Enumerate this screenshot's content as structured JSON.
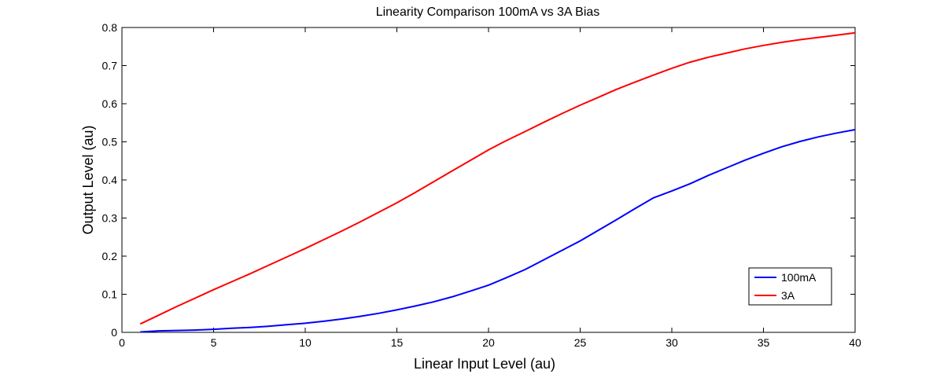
{
  "chart_data": {
    "type": "line",
    "title": "Linearity Comparison 100mA vs 3A Bias",
    "xlabel": "Linear Input Level (au)",
    "ylabel": "Output Level (au)",
    "xlim": [
      0,
      40
    ],
    "ylim": [
      0,
      0.8
    ],
    "xticks": [
      "0",
      "5",
      "10",
      "15",
      "20",
      "25",
      "30",
      "35",
      "40"
    ],
    "yticks": [
      "0",
      "0.1",
      "0.2",
      "0.3",
      "0.4",
      "0.5",
      "0.6",
      "0.7",
      "0.8"
    ],
    "grid": false,
    "legend_position": "bottom-right",
    "series": [
      {
        "name": "100mA",
        "color": "#0000ff",
        "x": [
          1,
          2,
          3,
          4,
          5,
          6,
          7,
          8,
          9,
          10,
          11,
          12,
          13,
          14,
          15,
          16,
          17,
          18,
          19,
          20,
          21,
          22,
          23,
          24,
          25,
          26,
          27,
          28,
          29,
          30,
          31,
          32,
          33,
          34,
          35,
          36,
          37,
          38,
          39,
          40
        ],
        "y": [
          0.001,
          0.004,
          0.005,
          0.006,
          0.008,
          0.011,
          0.013,
          0.016,
          0.02,
          0.024,
          0.029,
          0.035,
          0.042,
          0.05,
          0.059,
          0.069,
          0.08,
          0.093,
          0.108,
          0.124,
          0.144,
          0.165,
          0.19,
          0.215,
          0.24,
          0.268,
          0.296,
          0.325,
          0.353,
          0.371,
          0.39,
          0.412,
          0.432,
          0.452,
          0.47,
          0.487,
          0.501,
          0.513,
          0.523,
          0.532
        ]
      },
      {
        "name": "3A",
        "color": "#ff0000",
        "x": [
          1,
          2,
          3,
          4,
          5,
          6,
          7,
          8,
          9,
          10,
          11,
          12,
          13,
          14,
          15,
          16,
          17,
          18,
          19,
          20,
          21,
          22,
          23,
          24,
          25,
          26,
          27,
          28,
          29,
          30,
          31,
          32,
          33,
          34,
          35,
          36,
          37,
          38,
          39,
          40
        ],
        "y": [
          0.022,
          0.045,
          0.068,
          0.09,
          0.112,
          0.133,
          0.154,
          0.176,
          0.198,
          0.22,
          0.243,
          0.266,
          0.29,
          0.315,
          0.34,
          0.367,
          0.395,
          0.423,
          0.451,
          0.479,
          0.504,
          0.527,
          0.551,
          0.574,
          0.596,
          0.617,
          0.638,
          0.657,
          0.675,
          0.693,
          0.709,
          0.722,
          0.733,
          0.744,
          0.753,
          0.761,
          0.768,
          0.774,
          0.78,
          0.786
        ]
      }
    ]
  }
}
